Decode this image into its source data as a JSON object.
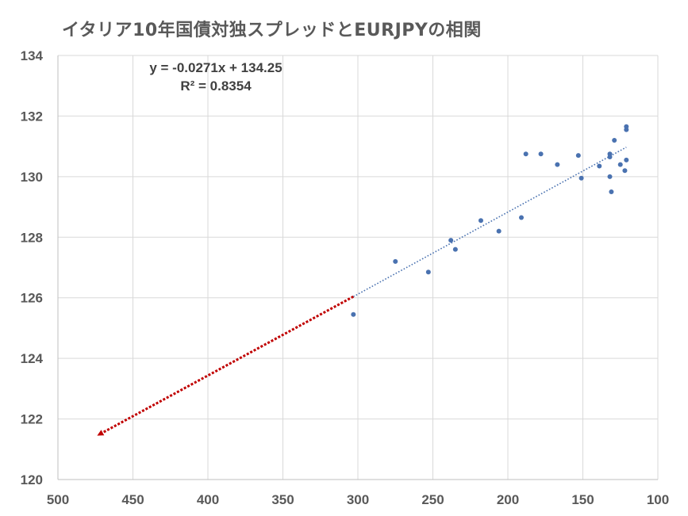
{
  "chart_data": {
    "type": "scatter",
    "title": "イタリア10年国債対独スプレッドとEURJPYの相関",
    "xlabel": "",
    "ylabel": "",
    "x_reversed": true,
    "xlim": [
      100,
      500
    ],
    "ylim": [
      120,
      134
    ],
    "x_ticks": [
      "500",
      "450",
      "400",
      "350",
      "300",
      "250",
      "200",
      "150",
      "100"
    ],
    "y_ticks": [
      "134",
      "132",
      "130",
      "128",
      "126",
      "124",
      "122",
      "120"
    ],
    "grid": true,
    "series": [
      {
        "kind": "points",
        "color": "#4a72b0",
        "points": [
          {
            "x": 303,
            "y": 125.45
          },
          {
            "x": 275,
            "y": 127.2
          },
          {
            "x": 253,
            "y": 126.85
          },
          {
            "x": 238,
            "y": 127.9
          },
          {
            "x": 235,
            "y": 127.6
          },
          {
            "x": 218,
            "y": 128.55
          },
          {
            "x": 206,
            "y": 128.2
          },
          {
            "x": 191,
            "y": 128.65
          },
          {
            "x": 188,
            "y": 130.75
          },
          {
            "x": 178,
            "y": 130.75
          },
          {
            "x": 167,
            "y": 130.4
          },
          {
            "x": 153,
            "y": 130.7
          },
          {
            "x": 151,
            "y": 129.95
          },
          {
            "x": 139,
            "y": 130.35
          },
          {
            "x": 132,
            "y": 130.75
          },
          {
            "x": 132,
            "y": 130.65
          },
          {
            "x": 132,
            "y": 130.0
          },
          {
            "x": 131,
            "y": 129.5
          },
          {
            "x": 129,
            "y": 131.2
          },
          {
            "x": 125,
            "y": 130.4
          },
          {
            "x": 122,
            "y": 130.2
          },
          {
            "x": 121,
            "y": 130.55
          },
          {
            "x": 121,
            "y": 131.65
          },
          {
            "x": 121,
            "y": 131.55
          }
        ]
      }
    ],
    "trendline": {
      "equation": "y = -0.0271x + 134.25",
      "r_squared": "R² = 0.8354",
      "slope": -0.0271,
      "intercept": 134.25,
      "x_range": [
        121,
        303
      ],
      "color": "#4a72b0"
    },
    "extrapolation": {
      "from": {
        "x": 303,
        "y": 126.04
      },
      "to": {
        "x": 472,
        "y": 121.5
      },
      "color": "#c00000",
      "arrow": true
    }
  }
}
